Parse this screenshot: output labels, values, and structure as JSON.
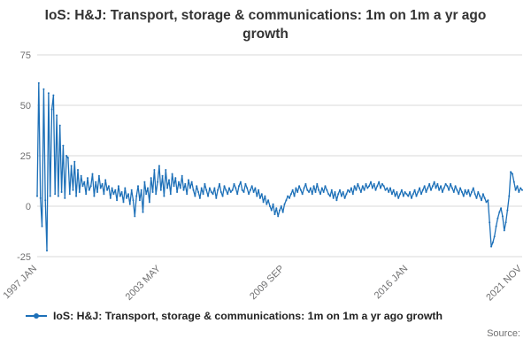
{
  "title": "IoS: H&J: Transport, storage & communications: 1m on 1m a yr ago growth",
  "legend": {
    "label": "IoS: H&J: Transport, storage & communications: 1m on 1m a yr ago growth"
  },
  "source_label": "Source:",
  "colors": {
    "line": "#1d70b8",
    "grid": "#d9d9d9",
    "tick_text": "#707071"
  },
  "chart_data": {
    "type": "line",
    "title": "IoS: H&J: Transport, storage & communications: 1m on 1m a yr ago growth",
    "xlabel": "",
    "ylabel": "",
    "ylim": [
      -25,
      75
    ],
    "yticks": [
      75,
      50,
      25,
      0,
      -25
    ],
    "grid": true,
    "legend_position": "bottom-left",
    "x_start": "1997 JAN",
    "x_end": "2021 NOV",
    "frequency": "monthly",
    "xtick_labels": [
      "1997 JAN",
      "2003 MAY",
      "2009 SEP",
      "2016 JAN",
      "2021 NOV"
    ],
    "xtick_indices": [
      0,
      76,
      152,
      228,
      298
    ],
    "line_color": "#1d70b8",
    "grid_color": "#d9d9d9",
    "values": [
      5,
      61,
      4,
      -10,
      58,
      3,
      -22,
      56,
      5,
      48,
      55,
      6,
      45,
      5,
      40,
      7,
      30,
      4,
      25,
      24,
      6,
      20,
      8,
      22,
      5,
      18,
      7,
      15,
      10,
      12,
      6,
      14,
      8,
      10,
      16,
      5,
      12,
      7,
      15,
      9,
      11,
      6,
      13,
      8,
      10,
      4,
      9,
      6,
      8,
      3,
      10,
      5,
      7,
      2,
      9,
      4,
      6,
      1,
      8,
      3,
      -5,
      5,
      10,
      3,
      8,
      -3,
      12,
      6,
      9,
      2,
      14,
      7,
      18,
      6,
      12,
      20,
      8,
      15,
      5,
      18,
      9,
      13,
      6,
      16,
      10,
      14,
      7,
      12,
      9,
      15,
      8,
      11,
      6,
      13,
      9,
      12,
      8,
      5,
      10,
      7,
      4,
      9,
      6,
      11,
      8,
      5,
      9,
      7,
      6,
      9,
      4,
      8,
      11,
      7,
      5,
      10,
      8,
      6,
      9,
      7,
      8,
      11,
      9,
      6,
      10,
      12,
      8,
      7,
      11,
      9,
      6,
      8,
      10,
      7,
      9,
      5,
      8,
      4,
      6,
      2,
      5,
      1,
      3,
      0,
      -2,
      1,
      -4,
      -1,
      -5,
      -2,
      0,
      -3,
      1,
      3,
      5,
      4,
      6,
      8,
      5,
      9,
      7,
      10,
      8,
      6,
      9,
      11,
      8,
      7,
      9,
      6,
      10,
      7,
      11,
      8,
      6,
      9,
      7,
      10,
      8,
      6,
      5,
      8,
      4,
      7,
      3,
      6,
      8,
      5,
      7,
      4,
      6,
      8,
      7,
      9,
      6,
      10,
      8,
      11,
      9,
      7,
      10,
      8,
      11,
      9,
      10,
      12,
      9,
      11,
      8,
      10,
      12,
      9,
      11,
      10,
      8,
      9,
      7,
      9,
      6,
      8,
      5,
      7,
      4,
      6,
      8,
      5,
      7,
      6,
      5,
      7,
      4,
      6,
      8,
      5,
      7,
      9,
      6,
      8,
      10,
      7,
      9,
      11,
      8,
      10,
      12,
      9,
      11,
      8,
      10,
      7,
      9,
      11,
      10,
      8,
      11,
      9,
      7,
      10,
      8,
      6,
      9,
      7,
      5,
      8,
      6,
      8,
      5,
      7,
      9,
      6,
      4,
      7,
      5,
      3,
      6,
      4,
      2,
      3,
      -8,
      -20,
      -18,
      -15,
      -10,
      -6,
      -3,
      -1,
      -5,
      -12,
      -8,
      -2,
      5,
      17,
      16,
      12,
      8,
      10,
      7,
      9,
      8
    ]
  }
}
